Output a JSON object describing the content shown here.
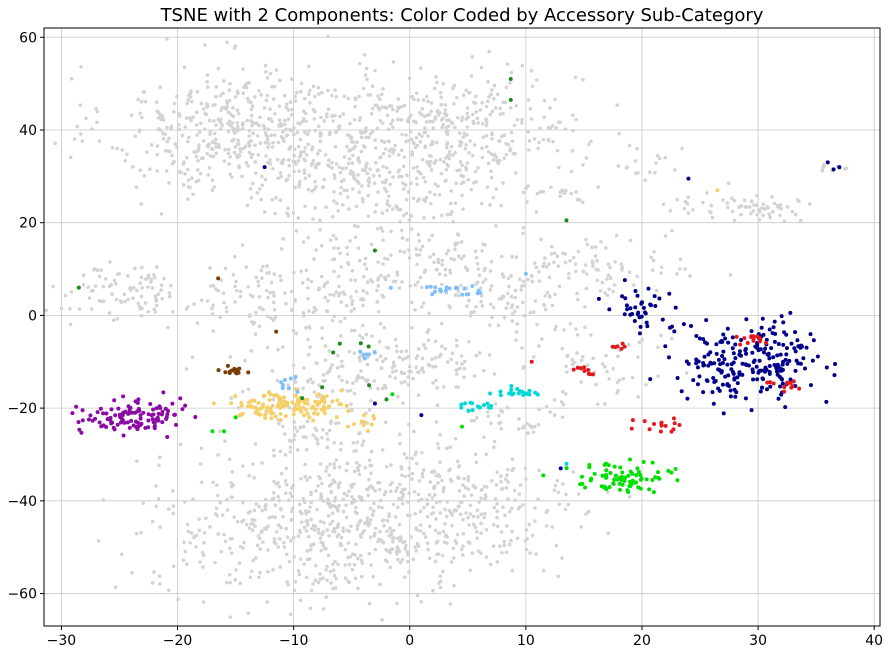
{
  "chart_data": {
    "type": "scatter",
    "title": "TSNE with 2 Components: Color Coded by Accessory Sub-Category",
    "xlabel": "",
    "ylabel": "",
    "xlim": [
      -31.5,
      40.5
    ],
    "ylim": [
      -67,
      62
    ],
    "xticks": [
      -30,
      -20,
      -10,
      0,
      10,
      20,
      30,
      40
    ],
    "xtick_labels": [
      "−30",
      "−20",
      "−10",
      "0",
      "10",
      "20",
      "30",
      "40"
    ],
    "yticks": [
      60,
      40,
      20,
      0,
      -20,
      -40,
      -60
    ],
    "ytick_labels": [
      "60",
      "40",
      "20",
      "0",
      "−20",
      "−40",
      "−60"
    ],
    "grid": true,
    "legend": "none",
    "background_clusters": [
      {
        "cx": -15,
        "cy": 40,
        "sx": 5.5,
        "sy": 7,
        "n": 420
      },
      {
        "cx": -3,
        "cy": 33,
        "sx": 6,
        "sy": 9,
        "n": 420
      },
      {
        "cx": 5,
        "cy": 40,
        "sx": 5,
        "sy": 6,
        "n": 260
      },
      {
        "cx": -8,
        "cy": -45,
        "sx": 7,
        "sy": 8,
        "n": 520
      },
      {
        "cx": 3,
        "cy": -42,
        "sx": 6,
        "sy": 9,
        "n": 320
      },
      {
        "cx": -25,
        "cy": 5,
        "sx": 3,
        "sy": 3,
        "n": 90
      },
      {
        "cx": -14,
        "cy": 4,
        "sx": 3,
        "sy": 4,
        "n": 80
      },
      {
        "cx": -6,
        "cy": 5,
        "sx": 3,
        "sy": 5,
        "n": 100
      },
      {
        "cx": 4,
        "cy": 10,
        "sx": 4,
        "sy": 4,
        "n": 90
      },
      {
        "cx": 15,
        "cy": 10,
        "sx": 4,
        "sy": 3,
        "n": 100
      },
      {
        "cx": 8,
        "cy": 2,
        "sx": 3,
        "sy": 3,
        "n": 60
      },
      {
        "cx": 2,
        "cy": -10,
        "sx": 3,
        "sy": 3,
        "n": 80
      },
      {
        "cx": -6,
        "cy": -12,
        "sx": 4,
        "sy": 5,
        "n": 120
      },
      {
        "cx": 16,
        "cy": -10,
        "sx": 3,
        "sy": 5,
        "n": 60
      },
      {
        "cx": 27,
        "cy": 23,
        "sx": 3,
        "sy": 2,
        "n": 40
      },
      {
        "cx": 31,
        "cy": 23,
        "sx": 2,
        "sy": 1.5,
        "n": 25
      },
      {
        "cx": 20,
        "cy": 33,
        "sx": 1.5,
        "sy": 1.5,
        "n": 15
      },
      {
        "cx": 13,
        "cy": 27,
        "sx": 1.5,
        "sy": 1.2,
        "n": 15
      },
      {
        "cx": 10,
        "cy": -22,
        "sx": 2,
        "sy": 2,
        "n": 30
      },
      {
        "cx": -8,
        "cy": -26,
        "sx": 3,
        "sy": 2,
        "n": 40
      },
      {
        "cx": 36,
        "cy": 32,
        "sx": 0.8,
        "sy": 0.6,
        "n": 10
      }
    ],
    "series": [
      {
        "color": "#8b0aa5",
        "clusters": [
          {
            "cx": -24,
            "cy": -22,
            "sx": 2.2,
            "sy": 1.8,
            "n": 110
          }
        ]
      },
      {
        "color": "#f5d06a",
        "clusters": [
          {
            "cx": -10.5,
            "cy": -19.5,
            "sx": 2.3,
            "sy": 1.5,
            "n": 130
          },
          {
            "cx": -4,
            "cy": -23,
            "sx": 1.2,
            "sy": 0.8,
            "n": 10
          }
        ]
      },
      {
        "color": "#00008b",
        "clusters": [
          {
            "cx": 29.5,
            "cy": -10,
            "sx": 3,
            "sy": 4,
            "n": 230
          },
          {
            "cx": 20.5,
            "cy": 1.5,
            "sx": 1.5,
            "sy": 2.5,
            "n": 40
          }
        ]
      },
      {
        "color": "#e31a1c",
        "clusters": [
          {
            "cx": 21.5,
            "cy": -24,
            "sx": 1.2,
            "sy": 1,
            "n": 15
          },
          {
            "cx": 29.5,
            "cy": -5,
            "sx": 0.8,
            "sy": 0.6,
            "n": 14
          },
          {
            "cx": 32.5,
            "cy": -15,
            "sx": 0.8,
            "sy": 0.6,
            "n": 12
          },
          {
            "cx": 15,
            "cy": -11.5,
            "sx": 0.6,
            "sy": 0.5,
            "n": 10
          },
          {
            "cx": 18.5,
            "cy": -7,
            "sx": 0.6,
            "sy": 0.5,
            "n": 6
          }
        ]
      },
      {
        "color": "#00e000",
        "clusters": [
          {
            "cx": 18.5,
            "cy": -35,
            "sx": 2,
            "sy": 1.5,
            "n": 80
          }
        ]
      },
      {
        "color": "#00d8d8",
        "clusters": [
          {
            "cx": 5.5,
            "cy": -19.5,
            "sx": 0.9,
            "sy": 0.6,
            "n": 15
          },
          {
            "cx": 9,
            "cy": -16.5,
            "sx": 0.9,
            "sy": 0.5,
            "n": 20
          }
        ]
      },
      {
        "color": "#7fbfff",
        "clusters": [
          {
            "cx": 3.5,
            "cy": 5.5,
            "sx": 1.8,
            "sy": 0.5,
            "n": 22
          },
          {
            "cx": -4,
            "cy": -8,
            "sx": 0.6,
            "sy": 0.8,
            "n": 6
          },
          {
            "cx": -11,
            "cy": -15,
            "sx": 1,
            "sy": 1,
            "n": 8
          }
        ]
      },
      {
        "color": "#7a3b00",
        "clusters": [
          {
            "cx": -15,
            "cy": -12,
            "sx": 0.9,
            "sy": 0.4,
            "n": 14
          }
        ]
      },
      {
        "color": "#1b8a1b",
        "clusters": [
          {
            "cx": -4,
            "cy": -10,
            "sx": 3,
            "sy": 4,
            "n": 8
          }
        ]
      }
    ],
    "outliers": [
      {
        "x": -28.5,
        "y": 6,
        "color": "#1b8a1b"
      },
      {
        "x": -3,
        "y": 14,
        "color": "#1b8a1b"
      },
      {
        "x": 13.5,
        "y": 20.5,
        "color": "#1b8a1b"
      },
      {
        "x": 8.7,
        "y": 51,
        "color": "#1b8a1b"
      },
      {
        "x": 8.7,
        "y": 46.5,
        "color": "#1b8a1b"
      },
      {
        "x": -16.5,
        "y": 8,
        "color": "#7a3b00"
      },
      {
        "x": -11.5,
        "y": -3.5,
        "color": "#7a3b00"
      },
      {
        "x": -12.5,
        "y": 32,
        "color": "#00008b"
      },
      {
        "x": 24,
        "y": 29.5,
        "color": "#00008b"
      },
      {
        "x": 36,
        "y": 33,
        "color": "#00008b"
      },
      {
        "x": 36.5,
        "y": 31.5,
        "color": "#00008b"
      },
      {
        "x": 37,
        "y": 32,
        "color": "#00008b"
      },
      {
        "x": 26.5,
        "y": 27,
        "color": "#f5d06a"
      },
      {
        "x": 1,
        "y": -21.5,
        "color": "#00008b"
      },
      {
        "x": 13,
        "y": -33,
        "color": "#00008b"
      },
      {
        "x": -3,
        "y": -19,
        "color": "#00008b"
      },
      {
        "x": 10.5,
        "y": -10,
        "color": "#e31a1c"
      },
      {
        "x": 4.5,
        "y": -24,
        "color": "#00e000"
      },
      {
        "x": 11.5,
        "y": -34.5,
        "color": "#00e000"
      },
      {
        "x": -17,
        "y": -25,
        "color": "#00e000"
      },
      {
        "x": -16,
        "y": -25,
        "color": "#00e000"
      },
      {
        "x": -15,
        "y": -22,
        "color": "#00e000"
      },
      {
        "x": -1.5,
        "y": -17,
        "color": "#00e000"
      },
      {
        "x": 10,
        "y": 9,
        "color": "#7fbfff"
      },
      {
        "x": 13.5,
        "y": -32,
        "color": "#00d8d8"
      }
    ]
  }
}
